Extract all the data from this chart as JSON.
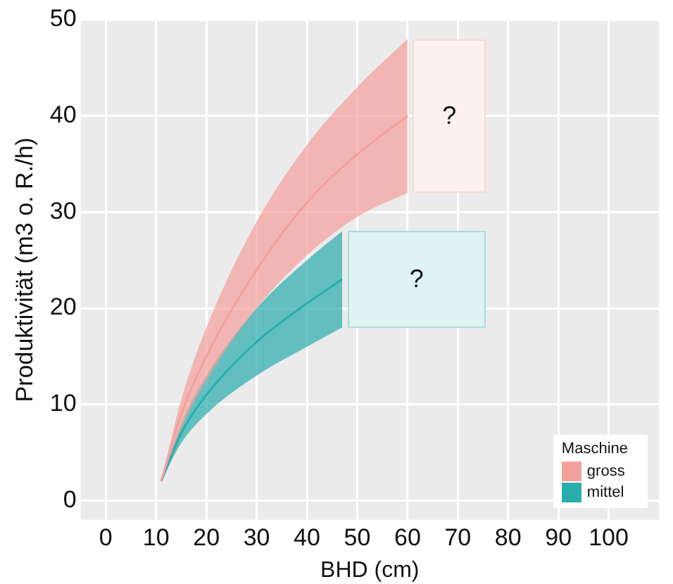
{
  "chart_data": {
    "type": "line",
    "xlabel": "BHD (cm)",
    "ylabel": "Produktivität (m3 o. R./h)",
    "legend_title": "Maschine",
    "legend": "bottom right",
    "grid": true,
    "marker": "none",
    "xlim": [
      -5,
      110
    ],
    "ylim": [
      -2,
      50
    ],
    "xticks": [
      0,
      10,
      20,
      30,
      40,
      50,
      60,
      70,
      80,
      90,
      100
    ],
    "yticks": [
      0,
      10,
      20,
      30,
      40,
      50
    ],
    "series": [
      {
        "name": "gross",
        "color": "#f4a09b",
        "x": [
          11,
          15,
          20,
          30,
          40,
          50,
          60
        ],
        "values": [
          2,
          9,
          15,
          24,
          31,
          36,
          40
        ],
        "lower": [
          2,
          7.5,
          12.5,
          20,
          25.5,
          29.5,
          32
        ],
        "upper": [
          2,
          10.5,
          18,
          29,
          37,
          43,
          48
        ]
      },
      {
        "name": "mittel",
        "color": "#2aadad",
        "x": [
          11,
          15,
          20,
          30,
          40,
          47
        ],
        "values": [
          2,
          7,
          11,
          16.5,
          20.5,
          23
        ],
        "lower": [
          2,
          6,
          9,
          13,
          16,
          18
        ],
        "upper": [
          2,
          8,
          13,
          20,
          25,
          28
        ]
      }
    ],
    "annotations": [
      "?",
      "?"
    ]
  }
}
